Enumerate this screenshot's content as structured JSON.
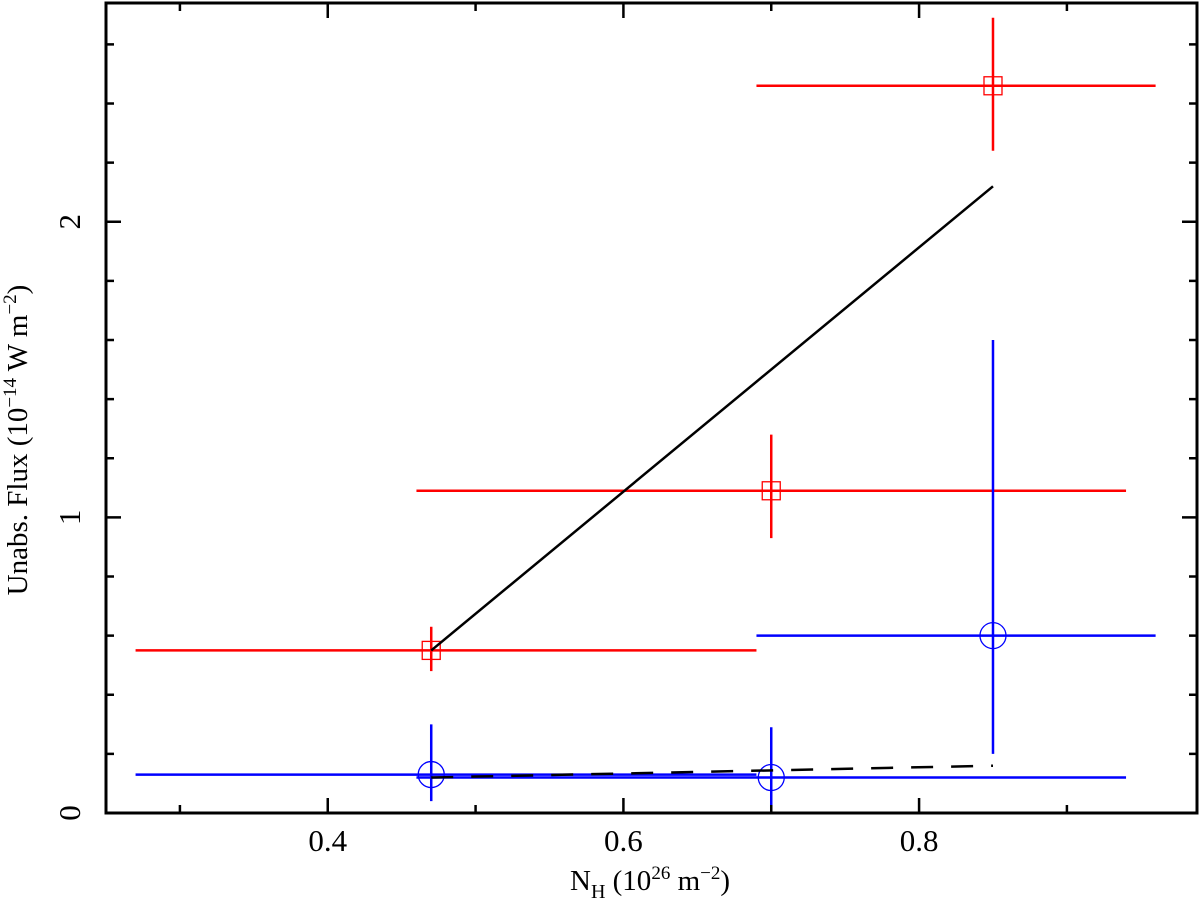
{
  "chart_data": {
    "type": "scatter",
    "title": "",
    "xlabel": "N_H (10^26 m^-2)",
    "ylabel": "Unabs. Flux (10^-14 W m^-2)",
    "xlim": [
      0.25,
      0.988
    ],
    "ylim": [
      0,
      2.74
    ],
    "grid": false,
    "legend": null,
    "x_ticks": [
      0.4,
      0.6,
      0.8
    ],
    "x_tick_labels": [
      "0.4",
      "0.6",
      "0.8"
    ],
    "x_minor_ticks": [
      0.3,
      0.5,
      0.7,
      0.9
    ],
    "y_ticks": [
      0,
      1,
      2
    ],
    "y_tick_labels": [
      "0",
      "1",
      "2"
    ],
    "y_minor_ticks": [
      0.2,
      0.4,
      0.6,
      0.8,
      1.2,
      1.4,
      1.6,
      1.8,
      2.2,
      2.4,
      2.6
    ],
    "series": [
      {
        "name": "red-squares",
        "color": "#ff0000",
        "marker": "square",
        "points": [
          {
            "x": 0.47,
            "y": 0.55,
            "xerr": [
              0.27,
              0.69
            ],
            "yerr": [
              0.48,
              0.63
            ]
          },
          {
            "x": 0.7,
            "y": 1.09,
            "xerr": [
              0.46,
              0.94
            ],
            "yerr": [
              0.93,
              1.28
            ]
          },
          {
            "x": 0.85,
            "y": 2.46,
            "xerr": [
              0.69,
              0.96
            ],
            "yerr": [
              2.24,
              2.69
            ]
          }
        ]
      },
      {
        "name": "blue-circles",
        "color": "#0000ff",
        "marker": "circle",
        "points": [
          {
            "x": 0.47,
            "y": 0.13,
            "xerr": [
              0.27,
              0.69
            ],
            "yerr": [
              0.04,
              0.3
            ]
          },
          {
            "x": 0.7,
            "y": 0.12,
            "xerr": [
              0.46,
              0.94
            ],
            "yerr": [
              0.0,
              0.29
            ]
          },
          {
            "x": 0.85,
            "y": 0.6,
            "xerr": [
              0.69,
              0.96
            ],
            "yerr": [
              0.2,
              1.6
            ]
          }
        ]
      },
      {
        "name": "solid-trend",
        "color": "#000000",
        "style": "solid",
        "type": "line",
        "x": [
          0.47,
          0.85
        ],
        "y": [
          0.55,
          2.12
        ]
      },
      {
        "name": "dashed-trend",
        "color": "#000000",
        "style": "dashed",
        "type": "line",
        "x": [
          0.47,
          0.85
        ],
        "y": [
          0.12,
          0.16
        ]
      }
    ]
  },
  "labels": {
    "x_main": "N",
    "x_sub": "H",
    "x_rest_open": " (10",
    "x_sup": "26",
    "x_rest_mid": " m",
    "x_sup2": "−2",
    "x_rest_close": ")",
    "y_main": "Unabs. Flux (10",
    "y_sup": "−14",
    "y_mid": " W m",
    "y_sup2": "−2",
    "y_close": ")"
  }
}
